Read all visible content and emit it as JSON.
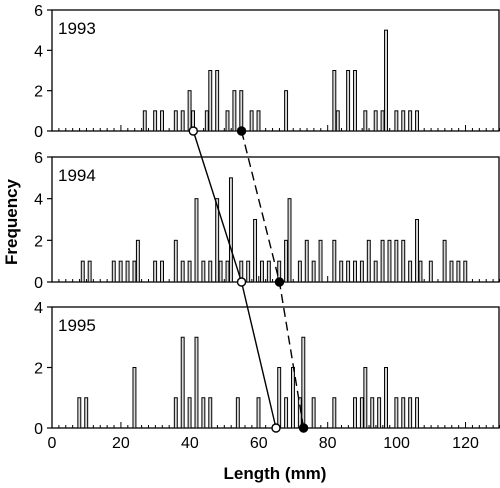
{
  "chart_data": {
    "type": "bar",
    "xlabel": "Length (mm)",
    "ylabel": "Frequency",
    "xlim": [
      0,
      130
    ],
    "x_ticks": [
      0,
      20,
      40,
      60,
      80,
      100,
      120
    ],
    "grid": false,
    "bar_width_mm": 1,
    "panels": [
      {
        "year": "1993",
        "ylim": [
          0,
          6
        ],
        "y_ticks": [
          0,
          2,
          4,
          6
        ],
        "bars": [
          {
            "x": 27,
            "y": 1
          },
          {
            "x": 30,
            "y": 1
          },
          {
            "x": 32,
            "y": 1
          },
          {
            "x": 36,
            "y": 1
          },
          {
            "x": 38,
            "y": 1
          },
          {
            "x": 40,
            "y": 2
          },
          {
            "x": 41,
            "y": 1
          },
          {
            "x": 45,
            "y": 1
          },
          {
            "x": 46,
            "y": 3
          },
          {
            "x": 48,
            "y": 3
          },
          {
            "x": 51,
            "y": 1
          },
          {
            "x": 53,
            "y": 2
          },
          {
            "x": 55,
            "y": 2
          },
          {
            "x": 58,
            "y": 1
          },
          {
            "x": 60,
            "y": 1
          },
          {
            "x": 68,
            "y": 2
          },
          {
            "x": 82,
            "y": 3
          },
          {
            "x": 83,
            "y": 1
          },
          {
            "x": 86,
            "y": 3
          },
          {
            "x": 88,
            "y": 3
          },
          {
            "x": 91,
            "y": 1
          },
          {
            "x": 94,
            "y": 1
          },
          {
            "x": 96,
            "y": 1
          },
          {
            "x": 97,
            "y": 5
          },
          {
            "x": 100,
            "y": 1
          },
          {
            "x": 102,
            "y": 1
          },
          {
            "x": 104,
            "y": 1
          },
          {
            "x": 106,
            "y": 1
          }
        ]
      },
      {
        "year": "1994",
        "ylim": [
          0,
          6
        ],
        "y_ticks": [
          0,
          2,
          4,
          6
        ],
        "bars": [
          {
            "x": 9,
            "y": 1
          },
          {
            "x": 11,
            "y": 1
          },
          {
            "x": 18,
            "y": 1
          },
          {
            "x": 20,
            "y": 1
          },
          {
            "x": 22,
            "y": 1
          },
          {
            "x": 24,
            "y": 1
          },
          {
            "x": 25,
            "y": 2
          },
          {
            "x": 30,
            "y": 1
          },
          {
            "x": 32,
            "y": 1
          },
          {
            "x": 36,
            "y": 2
          },
          {
            "x": 38,
            "y": 1
          },
          {
            "x": 40,
            "y": 1
          },
          {
            "x": 42,
            "y": 4
          },
          {
            "x": 44,
            "y": 1
          },
          {
            "x": 46,
            "y": 1
          },
          {
            "x": 48,
            "y": 4
          },
          {
            "x": 49,
            "y": 1
          },
          {
            "x": 51,
            "y": 1
          },
          {
            "x": 52,
            "y": 5
          },
          {
            "x": 55,
            "y": 1
          },
          {
            "x": 57,
            "y": 1
          },
          {
            "x": 59,
            "y": 3
          },
          {
            "x": 61,
            "y": 1
          },
          {
            "x": 63,
            "y": 1
          },
          {
            "x": 66,
            "y": 1
          },
          {
            "x": 68,
            "y": 2
          },
          {
            "x": 69,
            "y": 4
          },
          {
            "x": 72,
            "y": 1
          },
          {
            "x": 74,
            "y": 2
          },
          {
            "x": 76,
            "y": 1
          },
          {
            "x": 78,
            "y": 2
          },
          {
            "x": 82,
            "y": 2
          },
          {
            "x": 84,
            "y": 1
          },
          {
            "x": 86,
            "y": 1
          },
          {
            "x": 88,
            "y": 1
          },
          {
            "x": 90,
            "y": 1
          },
          {
            "x": 92,
            "y": 2
          },
          {
            "x": 94,
            "y": 1
          },
          {
            "x": 96,
            "y": 2
          },
          {
            "x": 98,
            "y": 2
          },
          {
            "x": 100,
            "y": 2
          },
          {
            "x": 102,
            "y": 2
          },
          {
            "x": 104,
            "y": 1
          },
          {
            "x": 106,
            "y": 3
          },
          {
            "x": 107,
            "y": 1
          },
          {
            "x": 110,
            "y": 1
          },
          {
            "x": 114,
            "y": 2
          },
          {
            "x": 116,
            "y": 1
          },
          {
            "x": 118,
            "y": 1
          },
          {
            "x": 120,
            "y": 1
          }
        ]
      },
      {
        "year": "1995",
        "ylim": [
          0,
          4
        ],
        "y_ticks": [
          0,
          2,
          4
        ],
        "bars": [
          {
            "x": 8,
            "y": 1
          },
          {
            "x": 10,
            "y": 1
          },
          {
            "x": 24,
            "y": 2
          },
          {
            "x": 36,
            "y": 1
          },
          {
            "x": 38,
            "y": 3
          },
          {
            "x": 40,
            "y": 1
          },
          {
            "x": 42,
            "y": 3
          },
          {
            "x": 44,
            "y": 1
          },
          {
            "x": 46,
            "y": 1
          },
          {
            "x": 54,
            "y": 1
          },
          {
            "x": 60,
            "y": 1
          },
          {
            "x": 66,
            "y": 2
          },
          {
            "x": 68,
            "y": 1
          },
          {
            "x": 70,
            "y": 2
          },
          {
            "x": 72,
            "y": 1
          },
          {
            "x": 73,
            "y": 3
          },
          {
            "x": 76,
            "y": 1
          },
          {
            "x": 82,
            "y": 1
          },
          {
            "x": 88,
            "y": 1
          },
          {
            "x": 90,
            "y": 1
          },
          {
            "x": 91,
            "y": 2
          },
          {
            "x": 93,
            "y": 1
          },
          {
            "x": 95,
            "y": 1
          },
          {
            "x": 97,
            "y": 2
          },
          {
            "x": 100,
            "y": 1
          },
          {
            "x": 102,
            "y": 1
          },
          {
            "x": 104,
            "y": 1
          },
          {
            "x": 106,
            "y": 1
          }
        ]
      }
    ],
    "tracking_lines": [
      {
        "style": "solid",
        "marker": "open-circle",
        "points_x": [
          41,
          55,
          65
        ]
      },
      {
        "style": "dashed",
        "marker": "filled-circle",
        "points_x": [
          55,
          66,
          73
        ]
      }
    ]
  },
  "colors": {
    "bar_fill": "#d9d9d9",
    "bar_stroke": "#000000",
    "axis": "#000000",
    "background": "#ffffff"
  }
}
